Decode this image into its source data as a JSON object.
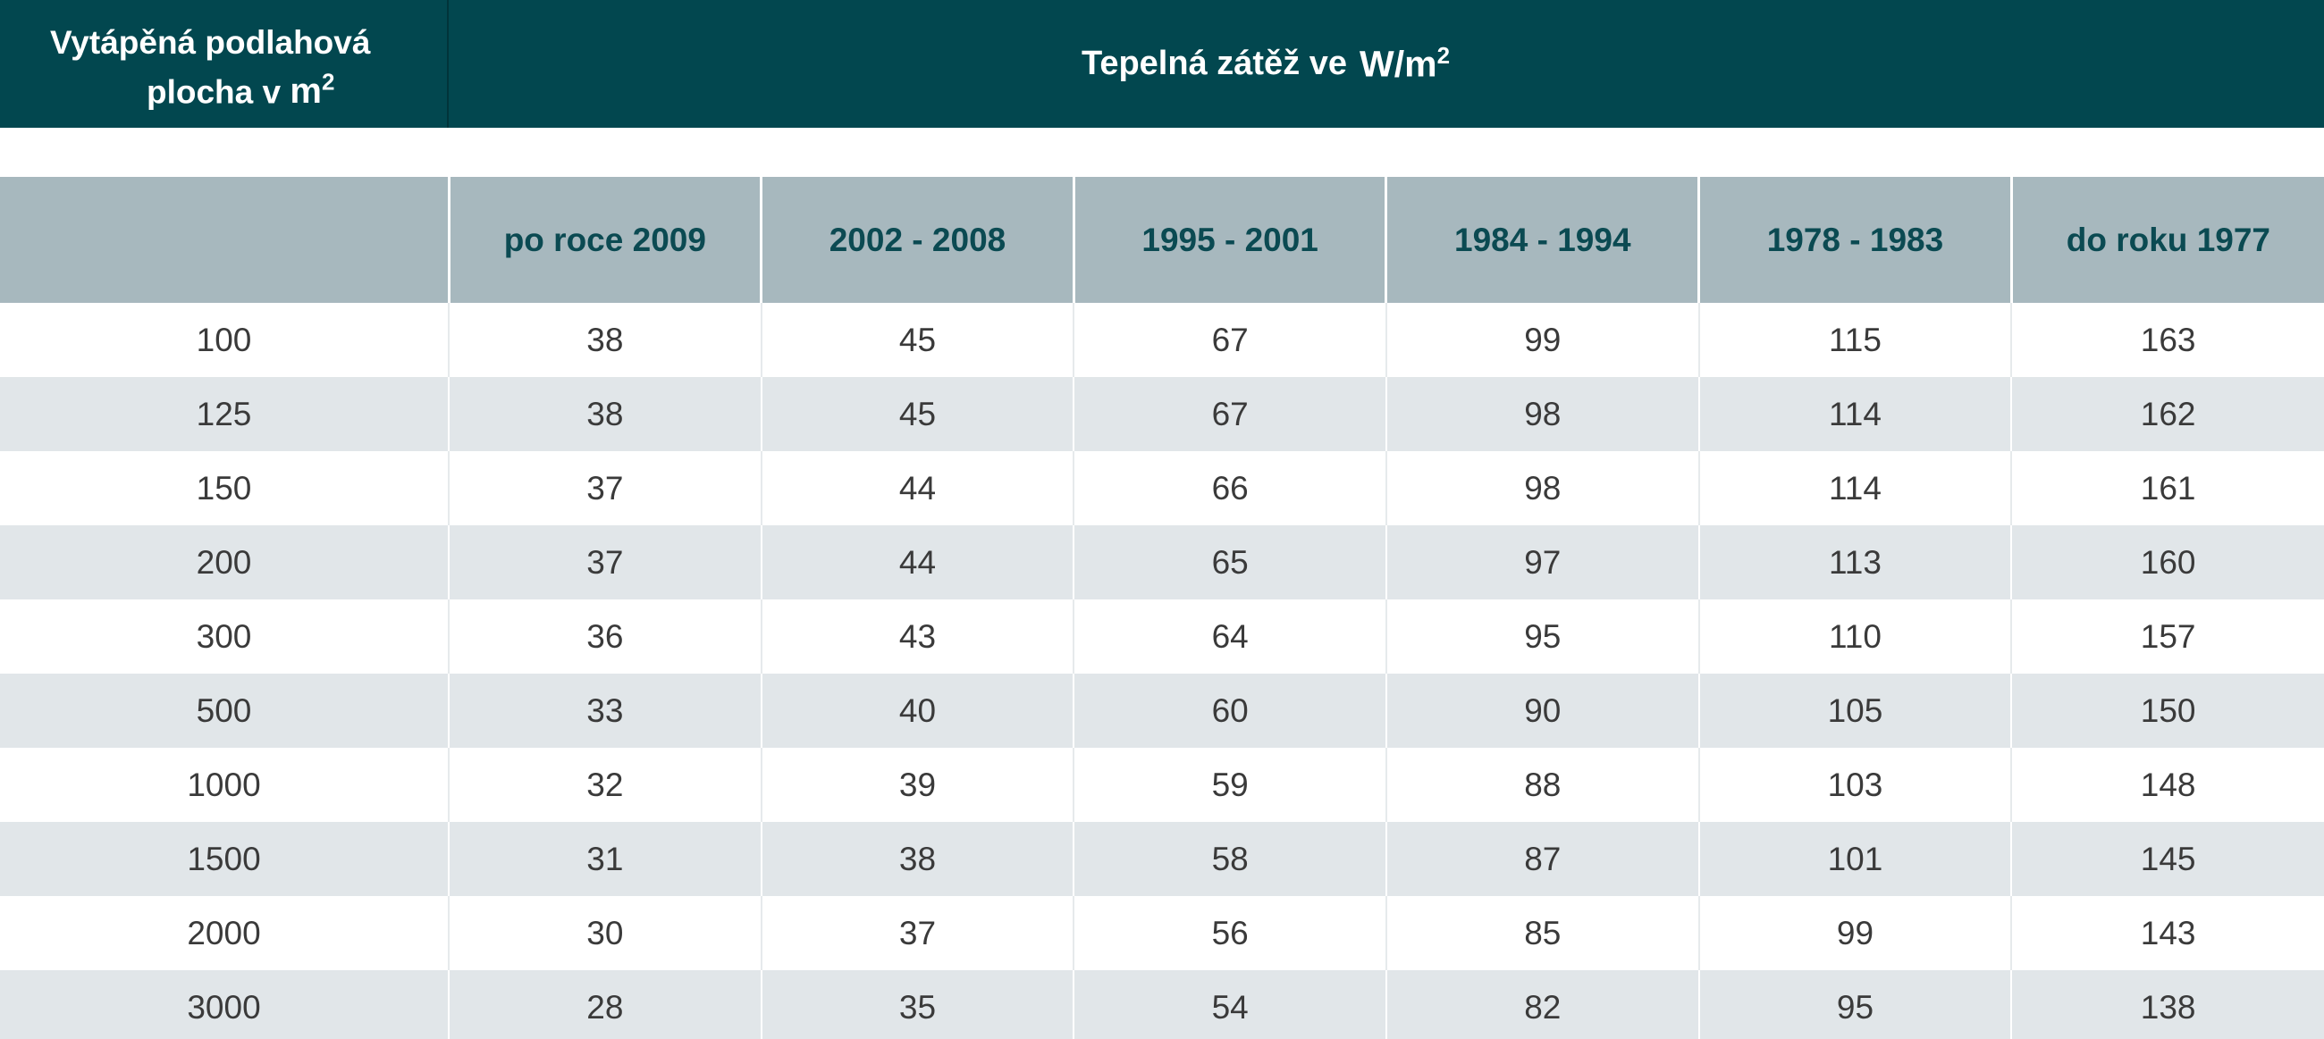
{
  "header": {
    "area_line1": "Vytápěná podlahová",
    "area_line2": "plocha v",
    "area_unit": "m",
    "area_unit_sup": "2",
    "load_title": "Tepelná zátěž ve",
    "load_unit": "W/m",
    "load_unit_sup": "2"
  },
  "table": {
    "columns": [
      "",
      "po roce 2009",
      "2002 - 2008",
      "1995 - 2001",
      "1984 - 1994",
      "1978 - 1983",
      "do roku 1977"
    ],
    "rows": [
      [
        "100",
        "38",
        "45",
        "67",
        "99",
        "115",
        "163"
      ],
      [
        "125",
        "38",
        "45",
        "67",
        "98",
        "114",
        "162"
      ],
      [
        "150",
        "37",
        "44",
        "66",
        "98",
        "114",
        "161"
      ],
      [
        "200",
        "37",
        "44",
        "65",
        "97",
        "113",
        "160"
      ],
      [
        "300",
        "36",
        "43",
        "64",
        "95",
        "110",
        "157"
      ],
      [
        "500",
        "33",
        "40",
        "60",
        "90",
        "105",
        "150"
      ],
      [
        "1000",
        "32",
        "39",
        "59",
        "88",
        "103",
        "148"
      ],
      [
        "1500",
        "31",
        "38",
        "58",
        "87",
        "101",
        "145"
      ],
      [
        "2000",
        "30",
        "37",
        "56",
        "85",
        "99",
        "143"
      ],
      [
        "3000",
        "28",
        "35",
        "54",
        "82",
        "95",
        "138"
      ]
    ]
  },
  "colors": {
    "header_bg": "#02474f",
    "column_header_bg": "#a7b8be",
    "column_header_text": "#0b4a52",
    "stripe_bg": "#e1e6e9"
  }
}
